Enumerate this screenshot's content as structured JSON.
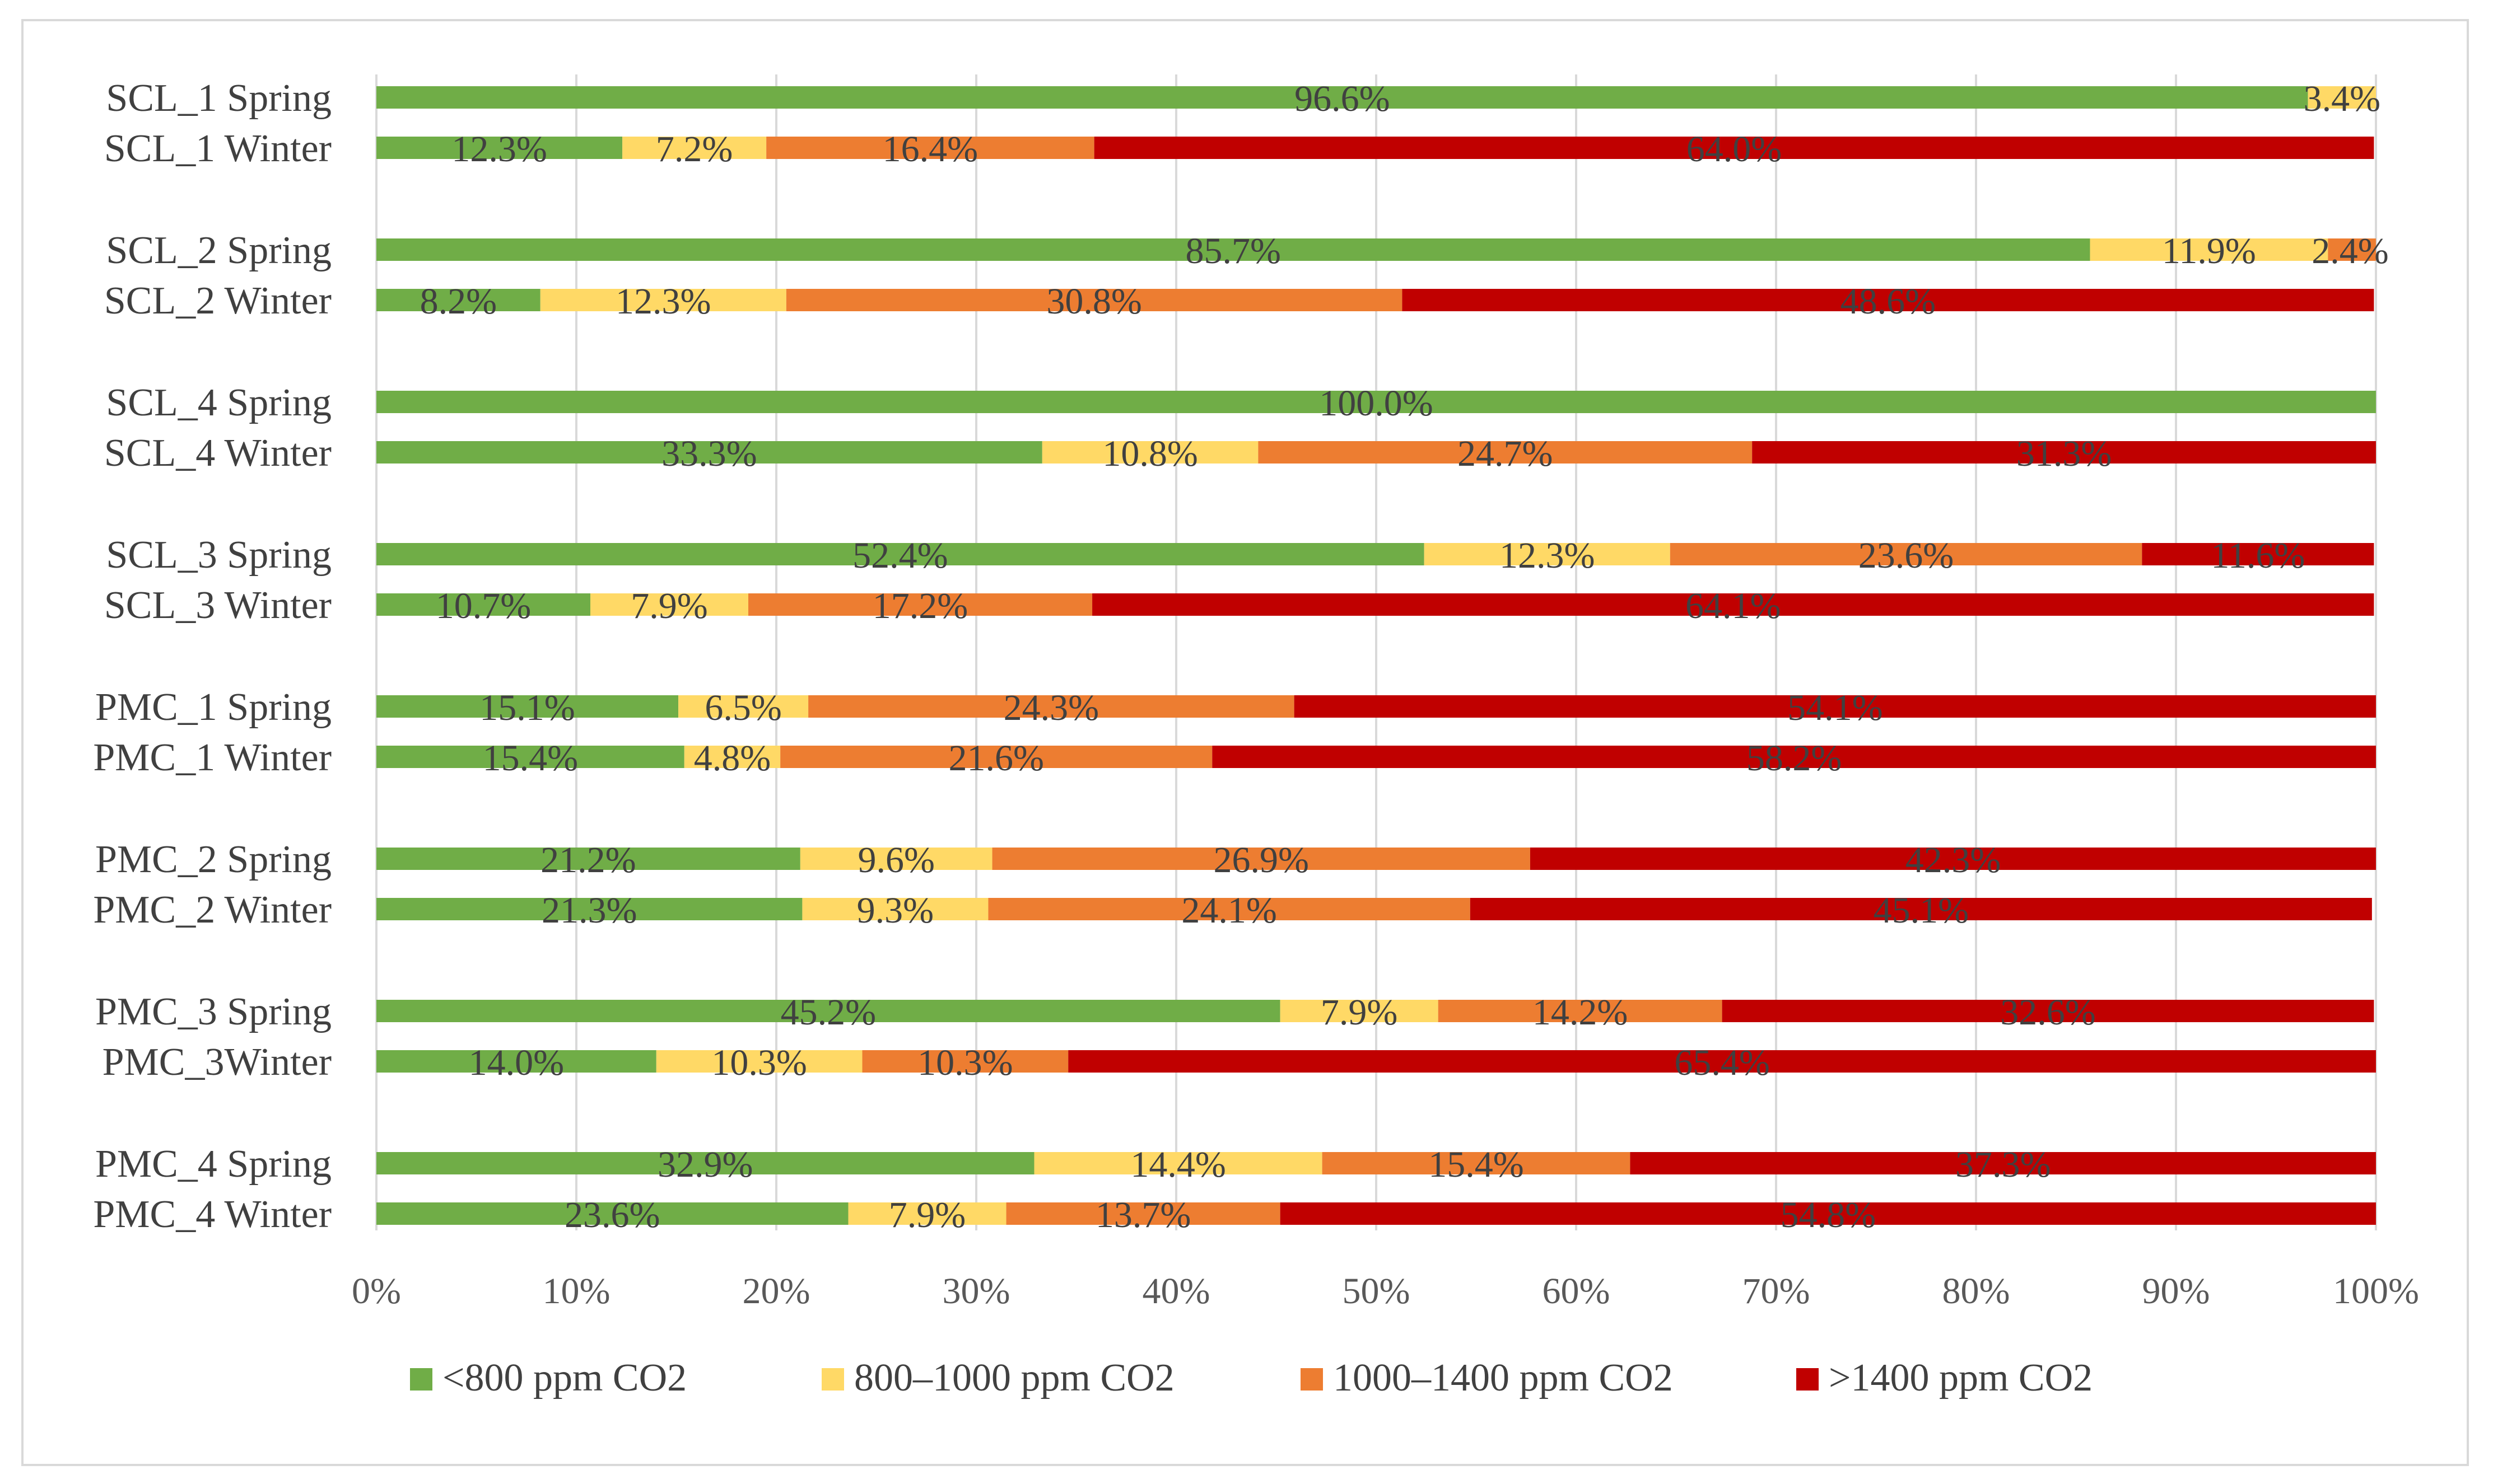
{
  "chart_data": {
    "type": "bar",
    "orientation": "horizontal",
    "stacked": "percent",
    "title": "",
    "xlabel": "",
    "ylabel": "",
    "xlim": [
      0,
      100
    ],
    "x_ticks": [
      "0%",
      "10%",
      "20%",
      "30%",
      "40%",
      "50%",
      "60%",
      "70%",
      "80%",
      "90%",
      "100%"
    ],
    "grid": true,
    "legend_position": "bottom",
    "categories": [
      "SCL_1 Spring",
      "SCL_1 Winter",
      "SCL_2 Spring",
      "SCL_2 Winter",
      "SCL_4 Spring",
      "SCL_4 Winter",
      "SCL_3 Spring",
      "SCL_3 Winter",
      "PMC_1 Spring",
      "PMC_1 Winter",
      "PMC_2 Spring",
      "PMC_2 Winter",
      "PMC_3 Spring",
      "PMC_3Winter",
      "PMC_4 Spring",
      "PMC_4 Winter"
    ],
    "series": [
      {
        "name": "<800 ppm CO2",
        "color": "#70ad47",
        "values": [
          96.6,
          12.3,
          85.7,
          8.2,
          100.0,
          33.3,
          52.4,
          10.7,
          15.1,
          15.4,
          21.2,
          21.3,
          45.2,
          14.0,
          32.9,
          23.6
        ],
        "labels": [
          "96.6%",
          "12.3%",
          "85.7%",
          "8.2%",
          "100.0%",
          "33.3%",
          "52.4%",
          "10.7%",
          "15.1%",
          "15.4%",
          "21.2%",
          "21.3%",
          "45.2%",
          "14.0%",
          "32.9%",
          "23.6%"
        ]
      },
      {
        "name": "800–1000 ppm CO2",
        "color": "#ffd966",
        "values": [
          3.4,
          7.2,
          11.9,
          12.3,
          0,
          10.8,
          12.3,
          7.9,
          6.5,
          4.8,
          9.6,
          9.3,
          7.9,
          10.3,
          14.4,
          7.9
        ],
        "labels": [
          "3.4%",
          "7.2%",
          "11.9%",
          "12.3%",
          "",
          "10.8%",
          "12.3%",
          "7.9%",
          "6.5%",
          "4.8%",
          "9.6%",
          "9.3%",
          "7.9%",
          "10.3%",
          "14.4%",
          "7.9%"
        ]
      },
      {
        "name": "1000–1400 ppm CO2",
        "color": "#ed7d31",
        "values": [
          0,
          16.4,
          2.4,
          30.8,
          0,
          24.7,
          23.6,
          17.2,
          24.3,
          21.6,
          26.9,
          24.1,
          14.2,
          10.3,
          15.4,
          13.7
        ],
        "labels": [
          "",
          "16.4%",
          "2.4%",
          "30.8%",
          "",
          "24.7%",
          "23.6%",
          "17.2%",
          "24.3%",
          "21.6%",
          "26.9%",
          "24.1%",
          "14.2%",
          "10.3%",
          "15.4%",
          "13.7%"
        ]
      },
      {
        "name": ">1400 ppm CO2",
        "color": "#c00000",
        "values": [
          0,
          64.0,
          0,
          48.6,
          0,
          31.3,
          11.6,
          64.1,
          54.1,
          58.2,
          42.3,
          45.1,
          32.6,
          65.4,
          37.3,
          54.8
        ],
        "labels": [
          "",
          "64.0%",
          "",
          "48.6%",
          "",
          "31.3%",
          "11.6%",
          "64.1%",
          "54.1%",
          "58.2%",
          "42.3%",
          "45.1%",
          "32.6%",
          "65.4%",
          "37.3%",
          "54.8%"
        ]
      }
    ]
  }
}
